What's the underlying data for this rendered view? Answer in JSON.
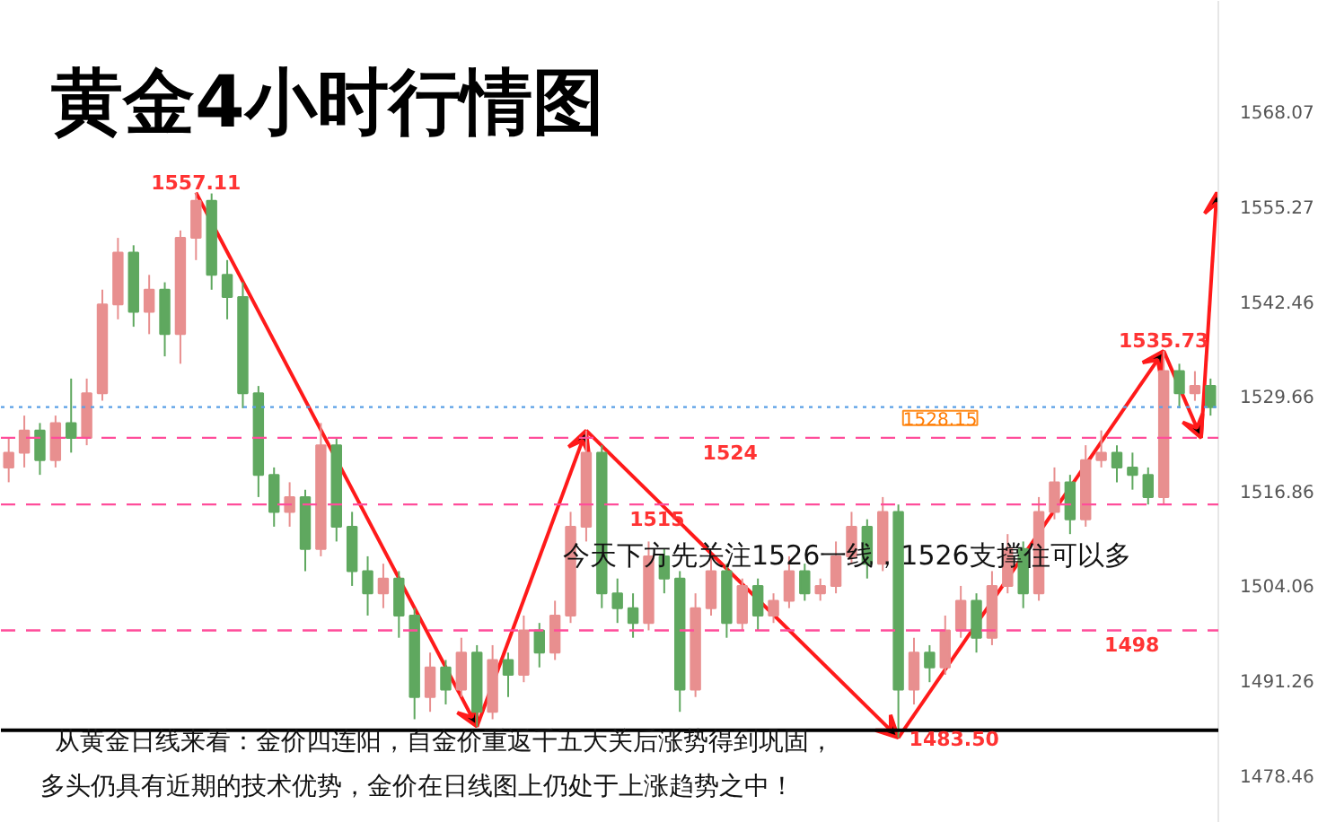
{
  "chart_data": {
    "type": "candlestick",
    "title": "黄金4小时行情图",
    "categories": [
      null,
      null,
      null,
      null,
      null,
      null,
      null,
      null,
      null,
      null,
      null,
      null,
      null,
      null,
      null,
      null,
      null,
      null,
      null,
      null,
      null,
      null,
      null,
      null,
      null,
      null,
      null,
      null,
      null,
      null,
      null,
      null,
      null,
      null,
      null,
      null,
      null,
      null,
      null,
      null,
      null,
      null,
      null,
      null,
      null,
      null,
      null,
      null,
      null,
      null,
      null,
      null,
      null,
      null,
      null,
      null,
      null,
      null,
      null,
      null,
      null,
      null,
      null,
      null,
      null,
      null,
      null,
      null,
      null,
      null,
      null,
      null,
      null,
      null,
      null,
      null,
      null,
      null
    ],
    "ohlc": [
      [
        1520,
        1524,
        1518,
        1522
      ],
      [
        1522,
        1527,
        1520,
        1525
      ],
      [
        1525,
        1526,
        1519,
        1521
      ],
      [
        1521,
        1527,
        1520,
        1526
      ],
      [
        1526,
        1532,
        1522,
        1524
      ],
      [
        1524,
        1532,
        1523,
        1530
      ],
      [
        1530,
        1544,
        1529,
        1542
      ],
      [
        1542,
        1551,
        1540,
        1549
      ],
      [
        1549,
        1550,
        1539,
        1541
      ],
      [
        1541,
        1546,
        1538,
        1544
      ],
      [
        1544,
        1545,
        1535,
        1538
      ],
      [
        1538,
        1552,
        1534,
        1551
      ],
      [
        1551,
        1557.11,
        1548,
        1556
      ],
      [
        1556,
        1557,
        1544,
        1546
      ],
      [
        1546,
        1548,
        1540,
        1543
      ],
      [
        1543,
        1545,
        1528,
        1530
      ],
      [
        1530,
        1531,
        1516,
        1519
      ],
      [
        1519,
        1520,
        1512,
        1514
      ],
      [
        1514,
        1518,
        1512,
        1516
      ],
      [
        1516,
        1517,
        1506,
        1509
      ],
      [
        1509,
        1526,
        1508,
        1523
      ],
      [
        1523,
        1524,
        1510,
        1512
      ],
      [
        1512,
        1514,
        1504,
        1506
      ],
      [
        1506,
        1508,
        1500,
        1503
      ],
      [
        1503,
        1507,
        1501,
        1505
      ],
      [
        1505,
        1506,
        1497,
        1500
      ],
      [
        1500,
        1501,
        1486,
        1489
      ],
      [
        1489,
        1495,
        1487,
        1493
      ],
      [
        1493,
        1494,
        1488,
        1490
      ],
      [
        1490,
        1497,
        1489,
        1495
      ],
      [
        1495,
        1496,
        1485,
        1487
      ],
      [
        1487,
        1496,
        1486,
        1494
      ],
      [
        1494,
        1495,
        1489,
        1492
      ],
      [
        1492,
        1500,
        1491,
        1498
      ],
      [
        1498,
        1499,
        1493,
        1495
      ],
      [
        1495,
        1502,
        1494,
        1500
      ],
      [
        1500,
        1514,
        1499,
        1512
      ],
      [
        1512,
        1525,
        1510,
        1522
      ],
      [
        1522,
        1523,
        1501,
        1503
      ],
      [
        1503,
        1505,
        1499,
        1501
      ],
      [
        1501,
        1503,
        1497,
        1499
      ],
      [
        1499,
        1510,
        1498,
        1508
      ],
      [
        1508,
        1509,
        1503,
        1505
      ],
      [
        1505,
        1506,
        1487,
        1490
      ],
      [
        1490,
        1503,
        1489,
        1501
      ],
      [
        1501,
        1508,
        1500,
        1506
      ],
      [
        1506,
        1507,
        1497,
        1499
      ],
      [
        1499,
        1505,
        1498,
        1504
      ],
      [
        1504,
        1505,
        1498,
        1500
      ],
      [
        1500,
        1503,
        1499,
        1502
      ],
      [
        1502,
        1508,
        1501,
        1506
      ],
      [
        1506,
        1507,
        1502,
        1503
      ],
      [
        1503,
        1505,
        1502,
        1504
      ],
      [
        1504,
        1510,
        1503,
        1508
      ],
      [
        1508,
        1514,
        1507,
        1512
      ],
      [
        1512,
        1513,
        1505,
        1507
      ],
      [
        1507,
        1516,
        1506,
        1514
      ],
      [
        1514,
        1515,
        1483.5,
        1490
      ],
      [
        1490,
        1497,
        1488,
        1495
      ],
      [
        1495,
        1496,
        1491,
        1493
      ],
      [
        1493,
        1500,
        1492,
        1498
      ],
      [
        1498,
        1504,
        1497,
        1502
      ],
      [
        1502,
        1503,
        1495,
        1497
      ],
      [
        1497,
        1506,
        1496,
        1504
      ],
      [
        1504,
        1511,
        1503,
        1509
      ],
      [
        1509,
        1510,
        1501,
        1503
      ],
      [
        1503,
        1516,
        1502,
        1514
      ],
      [
        1514,
        1520,
        1513,
        1518
      ],
      [
        1518,
        1519,
        1511,
        1513
      ],
      [
        1513,
        1523,
        1512,
        1521
      ],
      [
        1521,
        1525,
        1520,
        1522
      ],
      [
        1522,
        1523,
        1518,
        1520
      ],
      [
        1520,
        1522,
        1517,
        1519
      ],
      [
        1519,
        1520,
        1515,
        1516
      ],
      [
        1516,
        1535.73,
        1515,
        1533
      ],
      [
        1533,
        1534,
        1528,
        1530
      ],
      [
        1530,
        1533,
        1529,
        1531
      ],
      [
        1531,
        1532,
        1527,
        1528.15
      ]
    ],
    "ylim": [
      1472,
      1583
    ],
    "yticks": [
      1478.46,
      1491.26,
      1504.06,
      1516.86,
      1529.66,
      1542.46,
      1555.27,
      1568.07
    ],
    "tick_labels": "y",
    "grid": false,
    "ref_lines": [
      {
        "axis": "y",
        "value": 1528.15,
        "label": "1528.15",
        "color": "#5aa0e6",
        "line_style": "dotted"
      },
      {
        "axis": "y",
        "value": 1524,
        "label": "1524",
        "color": "#ff4d9a",
        "line_style": "dashed"
      },
      {
        "axis": "y",
        "value": 1515,
        "label": "1515",
        "color": "#ff4d9a",
        "line_style": "dashed"
      },
      {
        "axis": "y",
        "value": 1498,
        "label": "1498",
        "color": "#ff4d9a",
        "line_style": "dashed"
      },
      {
        "axis": "y",
        "value": 1484.5,
        "label": null,
        "color": "#000000",
        "line_style": "solid"
      }
    ],
    "annotations": [
      {
        "text": "1557.11",
        "y": 1557.11
      },
      {
        "text": "1535.73",
        "y": 1535.73
      },
      {
        "text": "1483.50",
        "y": 1483.5
      },
      "今天下方先关注1526一线，1526支撑住可以多",
      "从黄金日线来看：金价四连阳，自金价重返千五大关后涨势得到巩固，",
      "多头仍具有近期的技术优势，金价在日线图上仍处于上涨趋势之中！"
    ]
  }
}
